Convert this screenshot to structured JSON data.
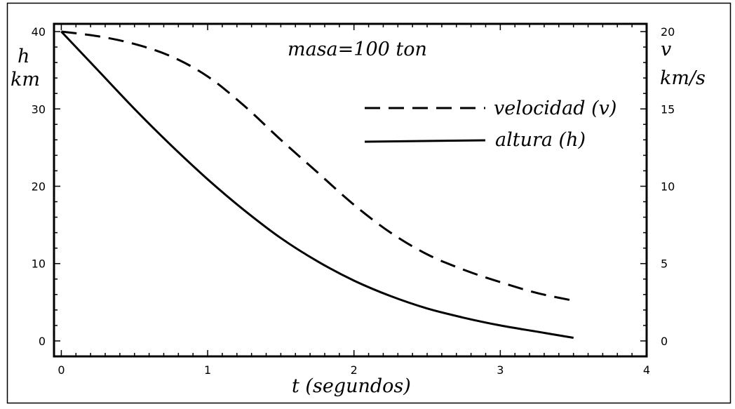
{
  "chart_data": {
    "type": "line",
    "title": "",
    "annotation": "masa=100 ton",
    "xlabel": "t (segundos)",
    "ylabel_left": {
      "line1": "h",
      "line2": "km"
    },
    "ylabel_right": {
      "line1": "v",
      "line2": "km/s"
    },
    "xlim": [
      -0.05,
      4
    ],
    "ylim_left": [
      -2,
      41
    ],
    "ylim_right": [
      -1,
      20.5
    ],
    "x_ticks": [
      0,
      1,
      2,
      3,
      4
    ],
    "x_tick_labels": [
      "0",
      "1",
      "2",
      "3",
      "4"
    ],
    "y_left_ticks": [
      0,
      10,
      20,
      30,
      40
    ],
    "y_left_tick_labels": [
      "0",
      "10",
      "20",
      "30",
      "40"
    ],
    "y_right_ticks": [
      0,
      5,
      10,
      15,
      20
    ],
    "y_right_tick_labels": [
      "0",
      "5",
      "10",
      "15",
      "20"
    ],
    "grid": false,
    "legend_position": "upper-right",
    "series": [
      {
        "name": "velocidad (v)",
        "axis": "right",
        "style": "dashed",
        "color": "#000000",
        "x": [
          0,
          0.25,
          0.5,
          0.75,
          1.0,
          1.25,
          1.5,
          1.75,
          2.0,
          2.25,
          2.5,
          2.75,
          3.0,
          3.25,
          3.5
        ],
        "y": [
          20.0,
          19.7,
          19.2,
          18.4,
          17.1,
          15.2,
          13.0,
          10.9,
          8.8,
          7.0,
          5.6,
          4.6,
          3.8,
          3.1,
          2.6
        ]
      },
      {
        "name": "altura (h)",
        "axis": "left",
        "style": "solid",
        "color": "#000000",
        "x": [
          0,
          0.25,
          0.5,
          0.75,
          1.0,
          1.25,
          1.5,
          1.75,
          2.0,
          2.25,
          2.5,
          2.75,
          3.0,
          3.25,
          3.5
        ],
        "y": [
          40.0,
          35.0,
          30.0,
          25.3,
          20.9,
          16.9,
          13.3,
          10.3,
          7.8,
          5.8,
          4.2,
          3.0,
          2.0,
          1.2,
          0.4
        ]
      }
    ]
  }
}
